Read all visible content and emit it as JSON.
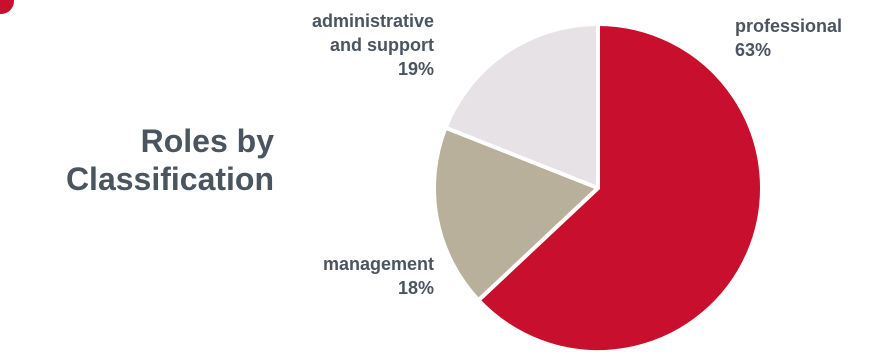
{
  "chart_data": {
    "type": "pie",
    "title": "Roles by\nClassification",
    "slices": [
      {
        "label_lines": [
          "professional",
          "63%"
        ],
        "value": 63,
        "color": "#c8102e"
      },
      {
        "label_lines": [
          "management",
          "18%"
        ],
        "value": 18,
        "color": "#b8b09a"
      },
      {
        "label_lines": [
          "administrative",
          "and support",
          "19%"
        ],
        "value": 19,
        "color": "#e6e2e6"
      }
    ],
    "start_at": "top",
    "direction": "clockwise",
    "slice_border_color": "#ffffff"
  },
  "decoration": {
    "corner_mark_color": "#c8102e"
  }
}
